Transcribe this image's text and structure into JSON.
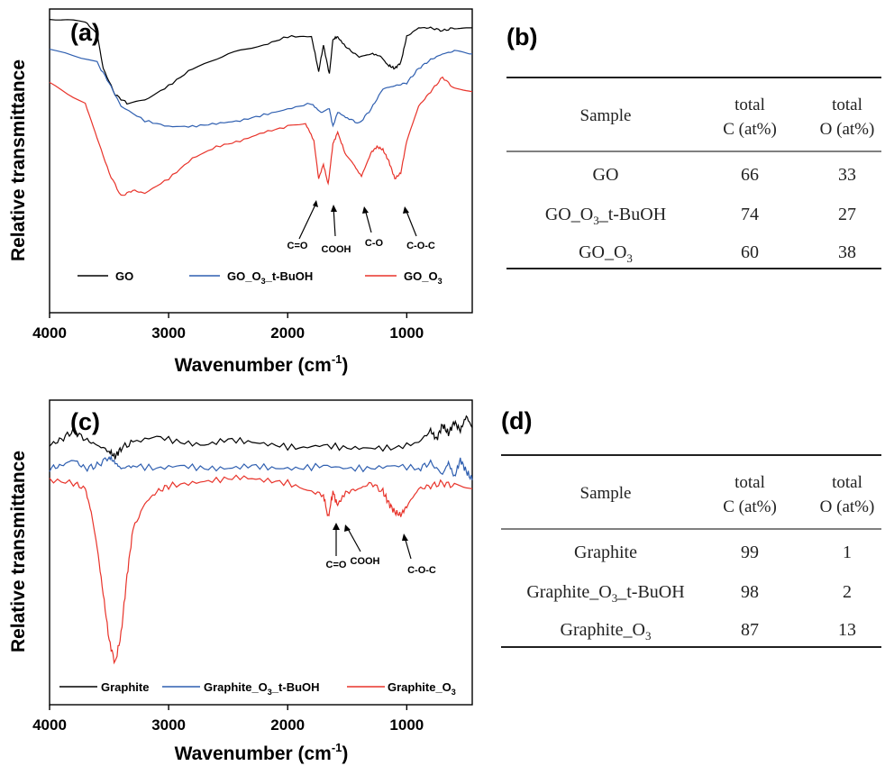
{
  "panels": [
    {
      "label": "(a)",
      "xlabel": "Wavenumber (cm",
      "xlabel_sup": "-1",
      "xlabel_tail": ")",
      "ylabel": "Relative transmittance",
      "annotations": [
        "C=O",
        "COOH",
        "C-O",
        "C-O-C"
      ],
      "legend": [
        {
          "text": "GO",
          "sub": ""
        },
        {
          "text": "GO_O",
          "sub": "3",
          "tail": "_t-BuOH"
        },
        {
          "text": "GO_O",
          "sub": "3",
          "tail": ""
        }
      ]
    },
    {
      "label": "(c)",
      "xlabel": "Wavenumber (cm",
      "xlabel_sup": "-1",
      "xlabel_tail": ")",
      "ylabel": "Relative transmittance",
      "annotations": [
        "C=O",
        "COOH",
        "C-O-C"
      ],
      "legend": [
        {
          "text": "Graphite",
          "sub": ""
        },
        {
          "text": "Graphite_O",
          "sub": "3",
          "tail": "_t-BuOH"
        },
        {
          "text": "Graphite_O",
          "sub": "3",
          "tail": ""
        }
      ]
    }
  ],
  "tables": [
    {
      "label": "(b)",
      "header": {
        "sample": "Sample",
        "c_top": "total",
        "c_bot": "C  (at%)",
        "o_top": "total",
        "o_bot": "O (at%)"
      },
      "rows": [
        {
          "sample": "GO",
          "sub": "",
          "tail": "",
          "c": "66",
          "o": "33"
        },
        {
          "sample": "GO_O",
          "sub": "3",
          "tail": "_t-BuOH",
          "c": "74",
          "o": "27"
        },
        {
          "sample": "GO_O",
          "sub": "3",
          "tail": "",
          "c": "60",
          "o": "38"
        }
      ]
    },
    {
      "label": "(d)",
      "header": {
        "sample": "Sample",
        "c_top": "total",
        "c_bot": "C  (at%)",
        "o_top": "total",
        "o_bot": "O (at%)"
      },
      "rows": [
        {
          "sample": "Graphite",
          "sub": "",
          "tail": "",
          "c": "99",
          "o": "1"
        },
        {
          "sample": "Graphite_O",
          "sub": "3",
          "tail": "_t-BuOH",
          "c": "98",
          "o": "2"
        },
        {
          "sample": "Graphite_O",
          "sub": "3",
          "tail": "",
          "c": "87",
          "o": "13"
        }
      ]
    }
  ],
  "chart_data": [
    {
      "type": "line",
      "panel": "(a)",
      "xlabel": "Wavenumber (cm-1)",
      "ylabel": "Relative transmittance",
      "xlim": [
        4000,
        450
      ],
      "x_reversed": true,
      "xticks": [
        4000,
        3000,
        2000,
        1000
      ],
      "y_ticks_shown": false,
      "ylim": [
        0,
        1
      ],
      "series": [
        {
          "name": "GO",
          "color": "#000000",
          "x": [
            4000,
            3700,
            3600,
            3550,
            3450,
            3350,
            3200,
            3000,
            2800,
            2500,
            2200,
            2000,
            1800,
            1740,
            1700,
            1650,
            1620,
            1580,
            1500,
            1400,
            1300,
            1220,
            1150,
            1100,
            1050,
            1000,
            900,
            800,
            700,
            600,
            450
          ],
          "y": [
            0.99,
            0.98,
            0.94,
            0.82,
            0.73,
            0.7,
            0.71,
            0.76,
            0.82,
            0.87,
            0.9,
            0.93,
            0.93,
            0.81,
            0.9,
            0.8,
            0.92,
            0.93,
            0.89,
            0.86,
            0.87,
            0.86,
            0.83,
            0.82,
            0.84,
            0.93,
            0.96,
            0.96,
            0.95,
            0.96,
            0.96
          ]
        },
        {
          "name": "GO_O3_t-BuOH",
          "color": "#2f5fb0",
          "x": [
            4000,
            3600,
            3500,
            3400,
            3200,
            3000,
            2800,
            2600,
            2400,
            2200,
            2000,
            1800,
            1720,
            1650,
            1620,
            1580,
            1500,
            1400,
            1300,
            1200,
            1100,
            1000,
            900,
            800,
            700,
            600,
            450
          ],
          "y": [
            0.89,
            0.84,
            0.77,
            0.69,
            0.64,
            0.62,
            0.62,
            0.63,
            0.64,
            0.66,
            0.68,
            0.7,
            0.67,
            0.68,
            0.62,
            0.67,
            0.65,
            0.63,
            0.68,
            0.75,
            0.76,
            0.77,
            0.82,
            0.85,
            0.87,
            0.88,
            0.87
          ]
        },
        {
          "name": "GO_O3",
          "color": "#e8332a",
          "x": [
            4000,
            3700,
            3600,
            3500,
            3400,
            3300,
            3200,
            3000,
            2800,
            2600,
            2400,
            2200,
            2000,
            1850,
            1780,
            1740,
            1700,
            1660,
            1620,
            1580,
            1520,
            1450,
            1380,
            1300,
            1250,
            1200,
            1150,
            1100,
            1050,
            1000,
            900,
            800,
            700,
            600,
            450
          ],
          "y": [
            0.77,
            0.7,
            0.58,
            0.46,
            0.38,
            0.4,
            0.39,
            0.44,
            0.51,
            0.55,
            0.57,
            0.6,
            0.62,
            0.63,
            0.57,
            0.44,
            0.49,
            0.42,
            0.56,
            0.6,
            0.53,
            0.49,
            0.45,
            0.53,
            0.55,
            0.54,
            0.5,
            0.44,
            0.46,
            0.57,
            0.69,
            0.74,
            0.79,
            0.75,
            0.74
          ]
        }
      ],
      "legend_position": "bottom"
    },
    {
      "type": "line",
      "panel": "(c)",
      "xlabel": "Wavenumber (cm-1)",
      "ylabel": "Relative transmittance",
      "xlim": [
        4000,
        450
      ],
      "x_reversed": true,
      "xticks": [
        4000,
        3000,
        2000,
        1000
      ],
      "y_ticks_shown": false,
      "ylim": [
        0,
        1
      ],
      "series": [
        {
          "name": "Graphite",
          "color": "#000000",
          "x": [
            4000,
            3900,
            3800,
            3700,
            3600,
            3500,
            3450,
            3400,
            3300,
            3100,
            2900,
            2700,
            2500,
            2300,
            2100,
            1900,
            1700,
            1500,
            1300,
            1100,
            900,
            800,
            750,
            700,
            650,
            600,
            550,
            500,
            450
          ],
          "y": [
            0.87,
            0.89,
            0.92,
            0.89,
            0.87,
            0.85,
            0.83,
            0.86,
            0.88,
            0.9,
            0.88,
            0.87,
            0.89,
            0.88,
            0.87,
            0.86,
            0.87,
            0.86,
            0.86,
            0.86,
            0.88,
            0.92,
            0.89,
            0.94,
            0.91,
            0.95,
            0.92,
            0.97,
            0.93
          ]
        },
        {
          "name": "Graphite_O3_t-BuOH",
          "color": "#2f5fb0",
          "x": [
            4000,
            3900,
            3800,
            3700,
            3600,
            3500,
            3450,
            3400,
            3300,
            3100,
            2900,
            2700,
            2500,
            2300,
            2100,
            1900,
            1700,
            1500,
            1300,
            1100,
            900,
            800,
            700,
            650,
            600,
            550,
            500,
            450
          ],
          "y": [
            0.79,
            0.8,
            0.82,
            0.79,
            0.8,
            0.83,
            0.81,
            0.79,
            0.8,
            0.79,
            0.8,
            0.79,
            0.79,
            0.8,
            0.79,
            0.79,
            0.8,
            0.79,
            0.79,
            0.8,
            0.79,
            0.81,
            0.77,
            0.81,
            0.76,
            0.82,
            0.78,
            0.75
          ]
        },
        {
          "name": "Graphite_O3",
          "color": "#e8332a",
          "x": [
            4000,
            3800,
            3700,
            3650,
            3600,
            3550,
            3500,
            3450,
            3400,
            3350,
            3300,
            3200,
            3100,
            3000,
            2800,
            2600,
            2400,
            2200,
            2000,
            1800,
            1700,
            1660,
            1620,
            1580,
            1500,
            1400,
            1300,
            1200,
            1150,
            1100,
            1050,
            1000,
            900,
            800,
            700,
            600,
            450
          ],
          "y": [
            0.75,
            0.74,
            0.72,
            0.64,
            0.52,
            0.36,
            0.2,
            0.12,
            0.22,
            0.42,
            0.58,
            0.67,
            0.71,
            0.73,
            0.74,
            0.75,
            0.76,
            0.75,
            0.74,
            0.71,
            0.7,
            0.62,
            0.71,
            0.66,
            0.71,
            0.72,
            0.74,
            0.71,
            0.67,
            0.64,
            0.63,
            0.66,
            0.72,
            0.73,
            0.74,
            0.73,
            0.72
          ]
        }
      ],
      "legend_position": "bottom"
    }
  ]
}
